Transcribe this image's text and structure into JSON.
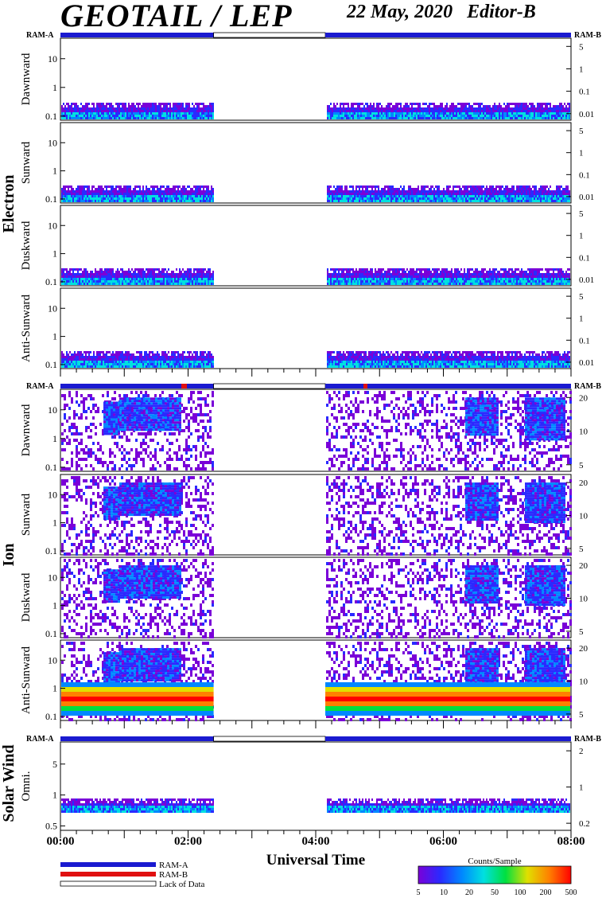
{
  "header": {
    "title": "GEOTAIL / LEP",
    "date": "22 May, 2020",
    "editor": "Editor-B"
  },
  "colors": {
    "ram_a": "#1a1ad0",
    "ram_b": "#e01010",
    "frame": "#000000"
  },
  "chart_data": {
    "type": "heatmap",
    "xlabel": "Universal Time",
    "x_ticks": [
      "00:00",
      "02:00",
      "04:00",
      "06:00",
      "08:00"
    ],
    "x_range_hours": [
      0,
      8
    ],
    "data_gap_hours": [
      2.4,
      4.15
    ],
    "groups": [
      {
        "name": "Electron",
        "status_left": "RAM-A",
        "status_right": "RAM-B",
        "panels": [
          {
            "label": "Dawnward",
            "left_ticks": [
              "10",
              "1",
              "0.1"
            ],
            "right_ticks": [
              "5",
              "1",
              "0.1",
              "0.01"
            ]
          },
          {
            "label": "Sunward",
            "left_ticks": [
              "10",
              "1",
              "0.1"
            ],
            "right_ticks": [
              "5",
              "1",
              "0.1",
              "0.01"
            ]
          },
          {
            "label": "Duskward",
            "left_ticks": [
              "10",
              "1",
              "0.1"
            ],
            "right_ticks": [
              "5",
              "1",
              "0.1",
              "0.01"
            ]
          },
          {
            "label": "Anti-Sunward",
            "left_ticks": [
              "10",
              "1",
              "0.1"
            ],
            "right_ticks": [
              "5",
              "1",
              "0.1",
              "0.01"
            ]
          }
        ]
      },
      {
        "name": "Ion",
        "status_left": "RAM-A",
        "status_right": "RAM-B",
        "panels": [
          {
            "label": "Dawnward",
            "left_ticks": [
              "10",
              "1",
              "0.1"
            ],
            "right_ticks": [
              "20",
              "10",
              "5"
            ]
          },
          {
            "label": "Sunward",
            "left_ticks": [
              "10",
              "1",
              "0.1"
            ],
            "right_ticks": [
              "20",
              "10",
              "5"
            ]
          },
          {
            "label": "Duskward",
            "left_ticks": [
              "10",
              "1",
              "0.1"
            ],
            "right_ticks": [
              "20",
              "10",
              "5"
            ]
          },
          {
            "label": "Anti-Sunward",
            "left_ticks": [
              "10",
              "1",
              "0.1"
            ],
            "right_ticks": [
              "20",
              "10",
              "5"
            ]
          }
        ]
      },
      {
        "name": "Solar Wind",
        "status_left": "RAM-A",
        "status_right": "RAM-B",
        "panels": [
          {
            "label": "Omni.",
            "left_ticks": [
              "5",
              "1",
              "0.5"
            ],
            "right_ticks": [
              "2",
              "1",
              "0.2"
            ]
          }
        ]
      }
    ],
    "legend": {
      "items": [
        "RAM-A",
        "RAM-B",
        "Lack of Data"
      ]
    },
    "colorbar": {
      "title": "Counts/Sample",
      "ticks": [
        "5",
        "10",
        "20",
        "50",
        "100",
        "200",
        "500"
      ],
      "colors": [
        "#7a00d8",
        "#2a2aff",
        "#0088ff",
        "#00e0e0",
        "#00e040",
        "#e0e000",
        "#ff8000",
        "#ff0000"
      ]
    }
  }
}
